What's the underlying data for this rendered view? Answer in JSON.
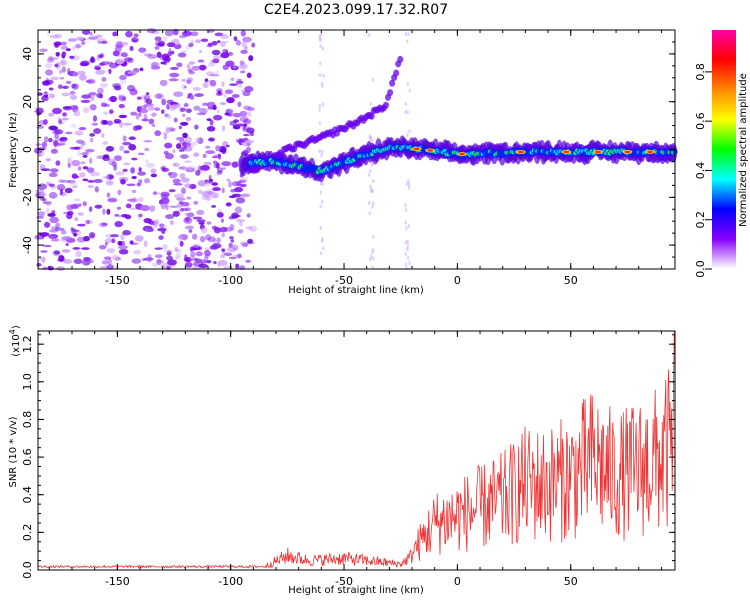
{
  "title": "C2E4.2023.099.17.32.R07",
  "chart_data": [
    {
      "type": "heatmap",
      "title": "C2E4.2023.099.17.32.R07",
      "xlabel": "Height of straight line (km)",
      "ylabel": "Frequency (Hz)",
      "xlim": [
        -185,
        96
      ],
      "ylim": [
        -50,
        50
      ],
      "x_ticks": [
        "-150",
        "-100",
        "-50",
        "0",
        "50"
      ],
      "y_ticks": [
        "-40",
        "-20",
        "0",
        "20",
        "40"
      ],
      "colorbar": {
        "label": "Normalized spectral amplitude",
        "range": [
          0,
          0.97
        ],
        "ticks": [
          "0.0",
          "0.2",
          "0.4",
          "0.6",
          "0.8"
        ],
        "colormap": [
          "#ffffff",
          "#8800ff",
          "#0000ff",
          "#00ffff",
          "#00ff00",
          "#ffff00",
          "#ff8800",
          "#ff0000",
          "#ff00aa"
        ]
      },
      "features": [
        {
          "name": "main-trace",
          "x": [
            -95,
            -80,
            -60,
            -40,
            -28,
            -15,
            0,
            30,
            60,
            96
          ],
          "y": [
            -6,
            -5,
            -9,
            -2,
            1,
            0,
            -2,
            -1,
            -1,
            -1
          ]
        },
        {
          "name": "upper-trace",
          "x": [
            -90,
            -75,
            -60,
            -45,
            -32,
            -25
          ],
          "y": [
            -9,
            0,
            5,
            11,
            18,
            38
          ]
        }
      ]
    },
    {
      "type": "line",
      "xlabel": "Height of straight line (km)",
      "ylabel": "SNR (10 * v/v)",
      "y_exponent": "(x10",
      "y_exponent_power": "4",
      "y_exponent_close": ")",
      "xlim": [
        -185,
        96
      ],
      "ylim": [
        0,
        1.27
      ],
      "x_ticks": [
        "-150",
        "-100",
        "-50",
        "0",
        "50"
      ],
      "y_ticks": [
        "0.0",
        "0.2",
        "0.4",
        "0.6",
        "0.8",
        "1.0",
        "1.2"
      ],
      "color": "#ee3333",
      "series_envelope": [
        {
          "x": -185,
          "y": 0.02
        },
        {
          "x": -100,
          "y": 0.02
        },
        {
          "x": -85,
          "y": 0.03
        },
        {
          "x": -75,
          "y": 0.12
        },
        {
          "x": -65,
          "y": 0.08
        },
        {
          "x": -50,
          "y": 0.1
        },
        {
          "x": -35,
          "y": 0.07
        },
        {
          "x": -25,
          "y": 0.05
        },
        {
          "x": -18,
          "y": 0.15
        },
        {
          "x": -10,
          "y": 0.3
        },
        {
          "x": 0,
          "y": 0.35
        },
        {
          "x": 10,
          "y": 0.4
        },
        {
          "x": 20,
          "y": 0.45
        },
        {
          "x": 30,
          "y": 0.55
        },
        {
          "x": 40,
          "y": 0.55
        },
        {
          "x": 50,
          "y": 0.6
        },
        {
          "x": 60,
          "y": 0.7
        },
        {
          "x": 70,
          "y": 0.6
        },
        {
          "x": 80,
          "y": 0.65
        },
        {
          "x": 88,
          "y": 0.7
        },
        {
          "x": 96,
          "y": 0.8
        }
      ]
    }
  ]
}
